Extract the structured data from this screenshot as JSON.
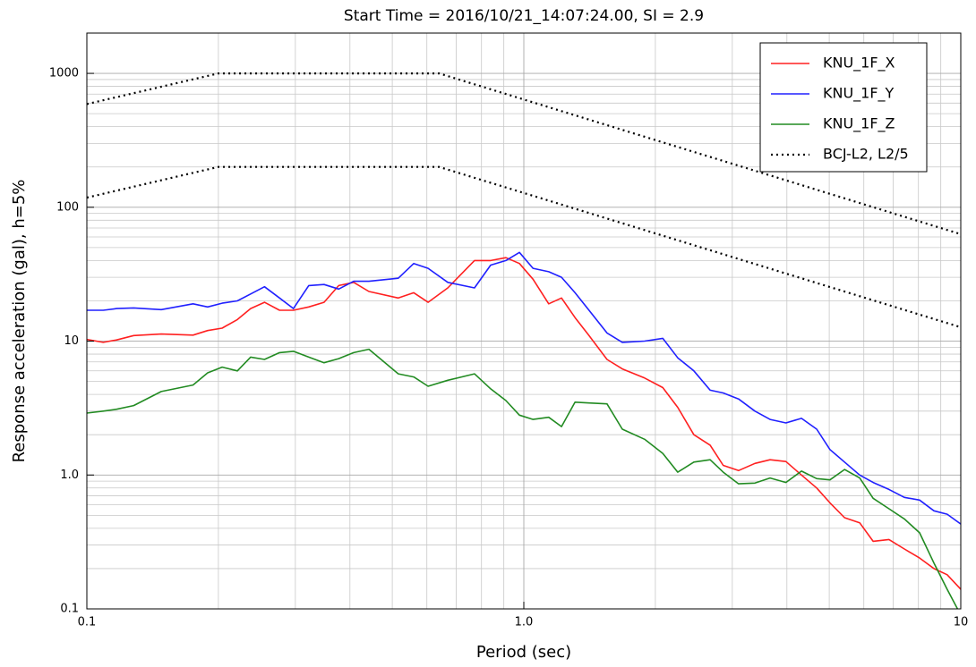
{
  "chart_data": {
    "type": "line",
    "title": "Start Time = 2016/10/21_14:07:24.00, SI = 2.9",
    "x_label": "Period (sec)",
    "y_label": "Response acceleration (gal), h=5%",
    "x_scale": "log",
    "y_scale": "log",
    "grid": true,
    "minor_grid": true,
    "legend": "upper right",
    "xlim": [
      0.1,
      10
    ],
    "ylim": [
      0.1,
      2000
    ],
    "xticks": [
      0.1,
      {
        "value": 1,
        "label": "1.0"
      },
      10
    ],
    "yticks": [
      0.1,
      {
        "value": 1,
        "label": "1.0"
      },
      10,
      100,
      1000
    ],
    "x": [
      0.1,
      0.109,
      0.117,
      0.128,
      0.148,
      0.175,
      0.189,
      0.204,
      0.221,
      0.237,
      0.255,
      0.276,
      0.297,
      0.322,
      0.349,
      0.377,
      0.408,
      0.442,
      0.516,
      0.56,
      0.604,
      0.67,
      0.771,
      0.84,
      0.91,
      0.977,
      1.05,
      1.14,
      1.22,
      1.31,
      1.41,
      1.55,
      1.68,
      1.89,
      2.08,
      2.25,
      2.45,
      2.67,
      2.86,
      3.1,
      3.38,
      3.66,
      3.98,
      4.32,
      4.68,
      5.02,
      5.42,
      5.87,
      6.3,
      6.85,
      7.43,
      8.05,
      8.68,
      9.31,
      10
    ],
    "series": [
      {
        "name": "KNU_1F_X",
        "color": "#ff2020",
        "style": "solid",
        "values": [
          10.3,
          9.8,
          10.2,
          11,
          11.3,
          11.1,
          12,
          12.5,
          14.5,
          17.5,
          19.5,
          17,
          17,
          18,
          19.5,
          26,
          27.5,
          23.5,
          21,
          23,
          19.5,
          25,
          40,
          40,
          42,
          38,
          29,
          19,
          21,
          15,
          11,
          7.3,
          6.2,
          5.3,
          4.5,
          3.2,
          2.0,
          1.67,
          1.18,
          1.08,
          1.22,
          1.3,
          1.26,
          1.0,
          0.8,
          0.62,
          0.48,
          0.44,
          0.32,
          0.33,
          0.28,
          0.24,
          0.2,
          0.18,
          0.14
        ]
      },
      {
        "name": "KNU_1F_Y",
        "color": "#2020ff",
        "style": "solid",
        "values": [
          17,
          17,
          17.5,
          17.7,
          17.2,
          19,
          18,
          19.2,
          20,
          22.5,
          25.5,
          21,
          17.5,
          26,
          26.5,
          24.5,
          28,
          28,
          29.5,
          38,
          35,
          27.5,
          25,
          37,
          40,
          46,
          35,
          33,
          30,
          23,
          17,
          11.5,
          9.8,
          10,
          10.5,
          7.5,
          6,
          4.3,
          4.1,
          3.7,
          3.0,
          2.6,
          2.45,
          2.65,
          2.2,
          1.55,
          1.25,
          1.0,
          0.88,
          0.78,
          0.68,
          0.65,
          0.54,
          0.51,
          0.43
        ]
      },
      {
        "name": "KNU_1F_Z",
        "color": "#228b22",
        "style": "solid",
        "values": [
          2.9,
          3.0,
          3.1,
          3.3,
          4.2,
          4.7,
          5.8,
          6.4,
          6.0,
          7.6,
          7.3,
          8.2,
          8.4,
          7.6,
          6.9,
          7.4,
          8.2,
          8.7,
          5.7,
          5.4,
          4.6,
          5.1,
          5.7,
          4.4,
          3.6,
          2.8,
          2.6,
          2.7,
          2.3,
          3.5,
          3.45,
          3.4,
          2.2,
          1.85,
          1.45,
          1.05,
          1.25,
          1.3,
          1.05,
          0.86,
          0.87,
          0.95,
          0.88,
          1.07,
          0.94,
          0.92,
          1.1,
          0.95,
          0.67,
          0.56,
          0.47,
          0.37,
          0.22,
          0.14,
          0.09
        ]
      },
      {
        "name": "BCJ-L2, L2/5",
        "color": "#000000",
        "style": "dotted",
        "x": [
          0.1,
          0.2,
          0.64,
          10
        ],
        "values": [
          590,
          1000,
          1000,
          63
        ]
      },
      {
        "color": "#000000",
        "style": "dotted",
        "x": [
          0.1,
          0.2,
          0.64,
          10
        ],
        "values": [
          118,
          200,
          200,
          12.7
        ]
      }
    ]
  }
}
